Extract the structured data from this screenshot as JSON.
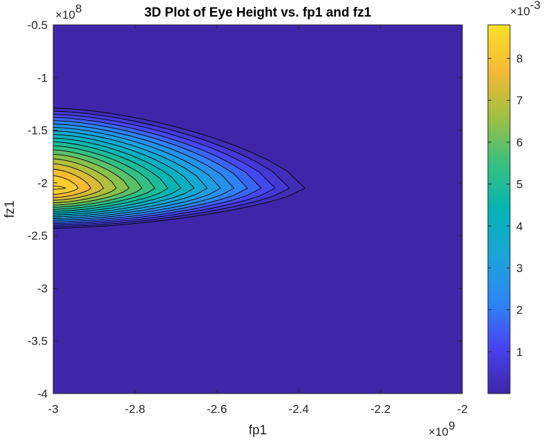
{
  "chart_data": {
    "type": "contour",
    "title": "3D Plot of Eye Height vs. fp1 and fz1",
    "xlabel": "fp1",
    "ylabel": "fz1",
    "x_exponent": "9",
    "y_exponent": "8",
    "colorbar_exponent": "-3",
    "xlim": [
      -3.0,
      -2.0
    ],
    "ylim": [
      -4.0,
      -0.5
    ],
    "clim": [
      0.0,
      8.8
    ],
    "x_ticks": [
      -3.0,
      -2.8,
      -2.6,
      -2.4,
      -2.2,
      -2.0
    ],
    "x_tick_labels": [
      "-3",
      "-2.8",
      "-2.6",
      "-2.4",
      "-2.2",
      "-2"
    ],
    "y_ticks": [
      -0.5,
      -1.0,
      -1.5,
      -2.0,
      -2.5,
      -3.0,
      -3.5,
      -4.0
    ],
    "y_tick_labels": [
      "-0.5",
      "-1",
      "-1.5",
      "-2",
      "-2.5",
      "-3",
      "-3.5",
      "-4"
    ],
    "colorbar_ticks": [
      1,
      2,
      3,
      4,
      5,
      6,
      7,
      8
    ],
    "colorbar_tick_labels": [
      "1",
      "2",
      "3",
      "4",
      "5",
      "6",
      "7",
      "8"
    ],
    "colormap": [
      "#3e26a8",
      "#4743f0",
      "#2e86f5",
      "#1aa5d8",
      "#04b4b4",
      "#38c080",
      "#a0c040",
      "#f6b935",
      "#f9e028"
    ],
    "peak": {
      "fp1": -3.0,
      "fz1": -2.05,
      "value": 8.8
    },
    "ridge_fz1": -2.05,
    "grid": false,
    "colorbar": "right"
  }
}
